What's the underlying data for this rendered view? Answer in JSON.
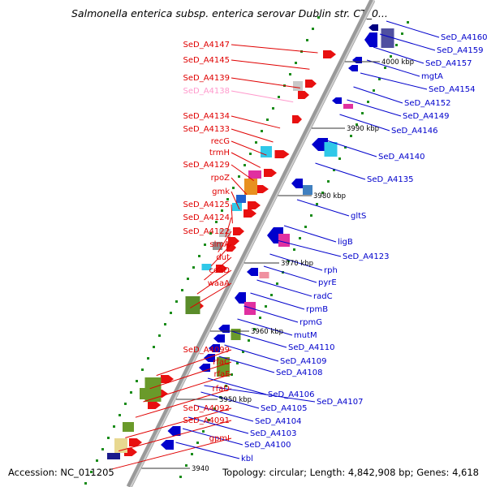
{
  "title": "Salmonella enterica subsp. enterica serovar Dublin str. CT_0...",
  "footer": {
    "accession": "Accession: NC_011205",
    "summary": "Topology: circular; Length: 4,842,908 bp; Genes: 4,618"
  },
  "colors": {
    "left_label": "#e00000",
    "right_label": "#0000cc",
    "faded_label": "#ff99cc",
    "backbone": "#999999"
  },
  "ticks": [
    "4000 kbp",
    "3990 kbp",
    "3980 kbp",
    "3970 kbp",
    "3960 kbp",
    "3950 kbp",
    "3940"
  ],
  "left_labels": [
    {
      "text": "SeD_A4147"
    },
    {
      "text": "SeD_A4145"
    },
    {
      "text": "SeD_A4139"
    },
    {
      "text": "SeD_A4138",
      "faded": true
    },
    {
      "text": "SeD_A4134"
    },
    {
      "text": "SeD_A4133"
    },
    {
      "text": "recG"
    },
    {
      "text": "trmH"
    },
    {
      "text": "SeD_A4129"
    },
    {
      "text": "rpoZ"
    },
    {
      "text": "gmk"
    },
    {
      "text": "SeD_A4125"
    },
    {
      "text": "SeD_A4124"
    },
    {
      "text": "SeD_A4122"
    },
    {
      "text": "slmA"
    },
    {
      "text": "dut"
    },
    {
      "text": "coaD"
    },
    {
      "text": "waaA"
    },
    {
      "text": "SeD_A4099"
    },
    {
      "text": "rfaC"
    },
    {
      "text": "rfaF"
    },
    {
      "text": "rfaD"
    },
    {
      "text": "SeD_A4092"
    },
    {
      "text": "SeD_A4091"
    },
    {
      "text": "gpmI"
    }
  ],
  "right_labels": [
    {
      "text": "SeD_A4160"
    },
    {
      "text": "SeD_A4159"
    },
    {
      "text": "SeD_A4157"
    },
    {
      "text": "mgtA"
    },
    {
      "text": "SeD_A4154"
    },
    {
      "text": "SeD_A4152"
    },
    {
      "text": "SeD_A4149"
    },
    {
      "text": "SeD_A4146"
    },
    {
      "text": "SeD_A4140"
    },
    {
      "text": "SeD_A4135"
    },
    {
      "text": "gltS"
    },
    {
      "text": "ligB"
    },
    {
      "text": "SeD_A4123"
    },
    {
      "text": "rph"
    },
    {
      "text": "pyrE"
    },
    {
      "text": "radC"
    },
    {
      "text": "rpmB"
    },
    {
      "text": "rpmG"
    },
    {
      "text": "mutM"
    },
    {
      "text": "SeD_A4110"
    },
    {
      "text": "SeD_A4109"
    },
    {
      "text": "SeD_A4108"
    },
    {
      "text": "SeD_A4106"
    },
    {
      "text": "SeD_A4107"
    },
    {
      "text": "SeD_A4105"
    },
    {
      "text": "SeD_A4104"
    },
    {
      "text": "SeD_A4103"
    },
    {
      "text": "SeD_A4100"
    },
    {
      "text": "kbl"
    }
  ]
}
